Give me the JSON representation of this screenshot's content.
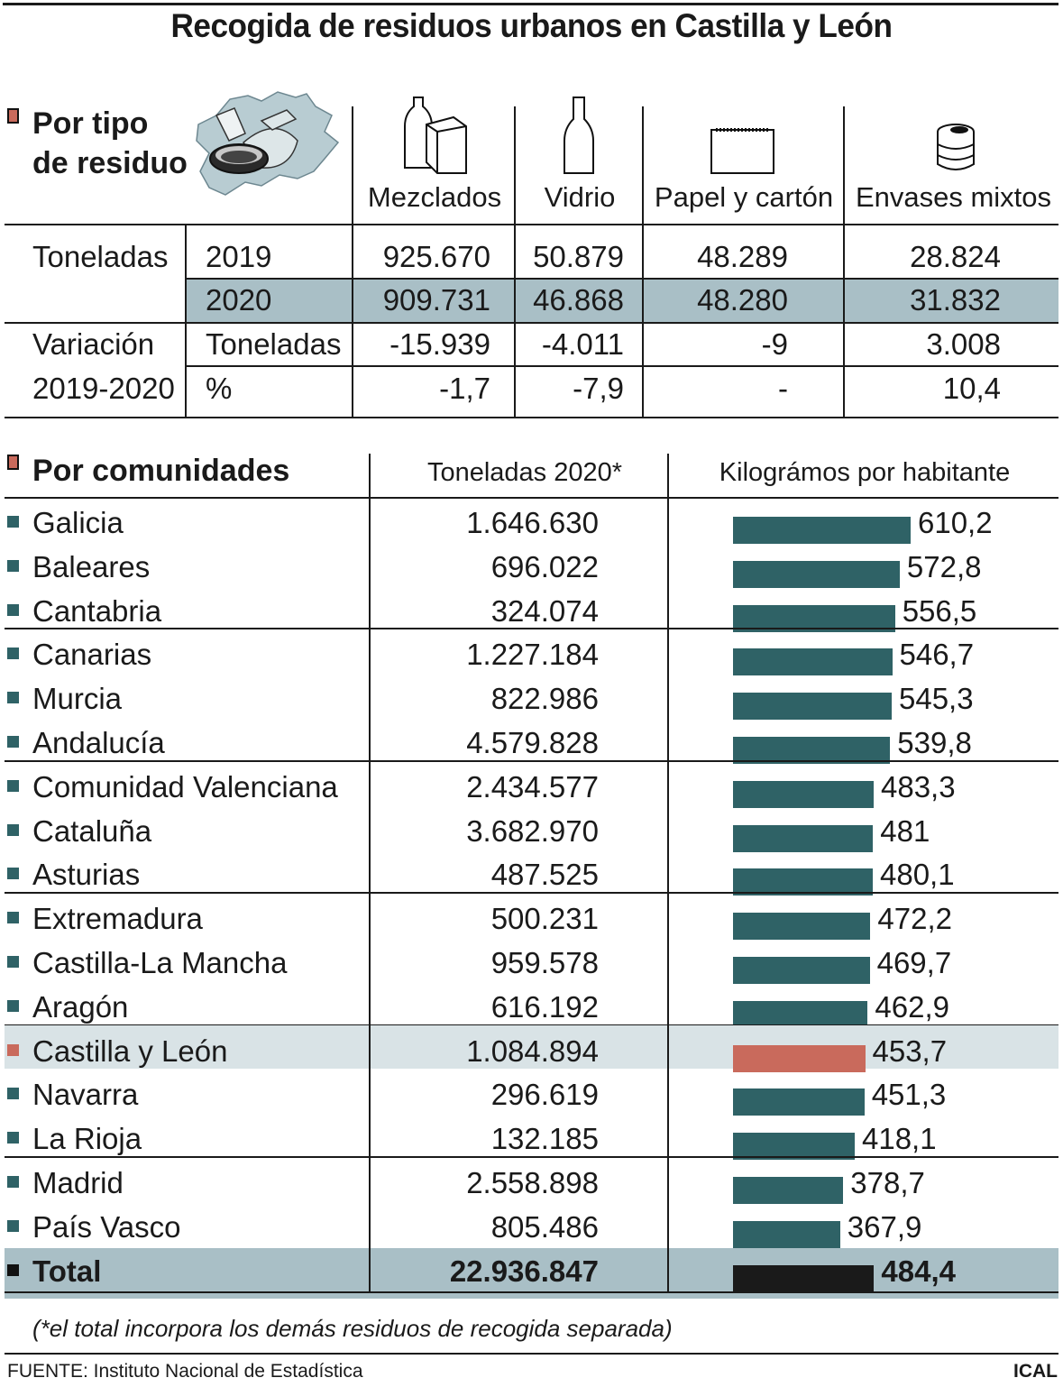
{
  "title": "Recogida de residuos urbanos en Castilla y León",
  "section1": {
    "heading_line1": "Por tipo",
    "heading_line2": "de residuo",
    "columns": [
      "Mezclados",
      "Vidrio",
      "Papel y cartón",
      "Envases mixtos"
    ],
    "icons": [
      "bottle-carton-icon",
      "glass-bottle-icon",
      "paper-pad-icon",
      "can-icon"
    ],
    "toneladas_label": "Toneladas",
    "rows": [
      {
        "year": "2019",
        "values": [
          "925.670",
          "50.879",
          "48.289",
          "28.824"
        ]
      },
      {
        "year": "2020",
        "values": [
          "909.731",
          "46.868",
          "48.280",
          "31.832"
        ]
      }
    ],
    "variacion_label_line1": "Variación",
    "variacion_label_line2": "2019-2020",
    "var_rows": [
      {
        "unit": "Toneladas",
        "values": [
          "-15.939",
          "-4.011",
          "-9",
          "3.008"
        ]
      },
      {
        "unit": "%",
        "values": [
          "-1,7",
          "-7,9",
          "-",
          "10,4"
        ]
      }
    ]
  },
  "section2": {
    "heading": "Por comunidades",
    "col_toneladas": "Toneladas 2020*",
    "col_kg": "Kilográmos por habitante"
  },
  "chart_data": {
    "type": "bar",
    "title": "Por comunidades",
    "ylabel": "Kilográmos por habitante",
    "categories": [
      "Galicia",
      "Baleares",
      "Cantabria",
      "Canarias",
      "Murcia",
      "Andalucía",
      "Comunidad Valenciana",
      "Cataluña",
      "Asturias",
      "Extremadura",
      "Castilla-La Mancha",
      "Aragón",
      "Castilla y León",
      "Navarra",
      "La Rioja",
      "Madrid",
      "País Vasco",
      "Total"
    ],
    "toneladas_2020": [
      "1.646.630",
      "696.022",
      "324.074",
      "1.227.184",
      "822.986",
      "4.579.828",
      "2.434.577",
      "3.682.970",
      "487.525",
      "500.231",
      "959.578",
      "616.192",
      "1.084.894",
      "296.619",
      "132.185",
      "2.558.898",
      "805.486",
      "22.936.847"
    ],
    "values": [
      610.2,
      572.8,
      556.5,
      546.7,
      545.3,
      539.8,
      483.3,
      481,
      480.1,
      472.2,
      469.7,
      462.9,
      453.7,
      451.3,
      418.1,
      378.7,
      367.9,
      484.4
    ],
    "value_labels": [
      "610,2",
      "572,8",
      "556,5",
      "546,7",
      "545,3",
      "539,8",
      "483,3",
      "481",
      "480,1",
      "472,2",
      "469,7",
      "462,9",
      "453,7",
      "451,3",
      "418,1",
      "378,7",
      "367,9",
      "484,4"
    ],
    "highlight": "Castilla y León",
    "colors": {
      "bar": "#2f6266",
      "highlight": "#c96a5c",
      "total": "#1a1a1a",
      "band": "#a9bfc6",
      "highlight_band": "#d9e3e6"
    }
  },
  "footnote": "(*el total incorpora los demás residuos de recogida separada)",
  "source": "FUENTE: Instituto Nacional de Estadística",
  "logo": "ICAL"
}
